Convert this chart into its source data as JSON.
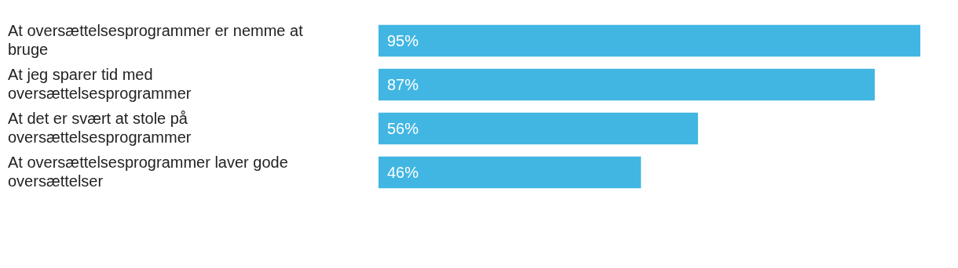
{
  "chart_data": {
    "type": "bar",
    "orientation": "horizontal",
    "categories": [
      "At oversættelsesprogrammer er nemme at bruge",
      "At jeg sparer tid med oversættelsesprogrammer",
      "At det er svært at stole på oversættelsesprogrammer",
      "At oversættelsesprogrammer laver gode oversættelser"
    ],
    "values": [
      95,
      87,
      56,
      46
    ],
    "color": "#41b6e3",
    "value_labels": [
      "95%",
      "87%",
      "56%",
      "46%"
    ],
    "legend": false
  }
}
